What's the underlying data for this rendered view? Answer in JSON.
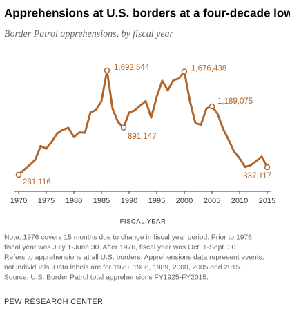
{
  "chart_data": {
    "type": "line",
    "title": "Apprehensions at U.S. borders at a four-decade low",
    "subtitle": "Border Patrol apprehensions, by fiscal year",
    "x_label": "FISCAL YEAR",
    "x": [
      1970,
      1971,
      1972,
      1973,
      1974,
      1975,
      1976,
      1977,
      1978,
      1979,
      1980,
      1981,
      1982,
      1983,
      1984,
      1985,
      1986,
      1987,
      1988,
      1989,
      1990,
      1991,
      1992,
      1993,
      1994,
      1995,
      1996,
      1997,
      1998,
      1999,
      2000,
      2001,
      2002,
      2003,
      2004,
      2005,
      2006,
      2007,
      2008,
      2009,
      2010,
      2011,
      2012,
      2013,
      2014,
      2015
    ],
    "values": [
      231116,
      302517,
      369495,
      441066,
      634777,
      596796,
      696039,
      812541,
      862217,
      888729,
      759420,
      825290,
      819919,
      1105670,
      1138566,
      1262435,
      1692544,
      1158030,
      969214,
      891147,
      1103353,
      1132933,
      1199560,
      1263490,
      1031668,
      1324202,
      1549876,
      1412953,
      1555776,
      1579010,
      1676438,
      1266214,
      955310,
      931557,
      1160395,
      1189075,
      1089092,
      876704,
      723825,
      556041,
      463382,
      340252,
      364768,
      420789,
      486651,
      337117
    ],
    "value_labels": [
      "231,116",
      null,
      null,
      null,
      null,
      null,
      null,
      null,
      null,
      null,
      null,
      null,
      null,
      null,
      null,
      null,
      "1,692,544",
      null,
      null,
      "891,147",
      null,
      null,
      null,
      null,
      null,
      null,
      null,
      null,
      null,
      null,
      "1,676,438",
      null,
      null,
      null,
      null,
      "1,189,075",
      null,
      null,
      null,
      null,
      null,
      null,
      null,
      null,
      null,
      "337,117"
    ],
    "color": "#b0652b",
    "xlim": [
      1970,
      2015
    ],
    "xticks": [
      1970,
      1975,
      1980,
      1985,
      1990,
      1995,
      2000,
      2005,
      2010,
      2015
    ],
    "notes": [
      "Note: 1976 covers 15 months due to change in fiscal year period. Prior to 1976,",
      "fiscal year was July 1-June 30. After 1976, fiscal year was Oct. 1-Sept. 30.",
      "Refers to apprehensions at all U.S. borders. Apprehensions data represent events,",
      "not individuals. Data labels are for 1970, 1986, 1989, 2000, 2005 and 2015.",
      "Source: U.S. Border Patrol total apprehensions FY1925-FY2015."
    ],
    "credit": "PEW RESEARCH CENTER"
  }
}
